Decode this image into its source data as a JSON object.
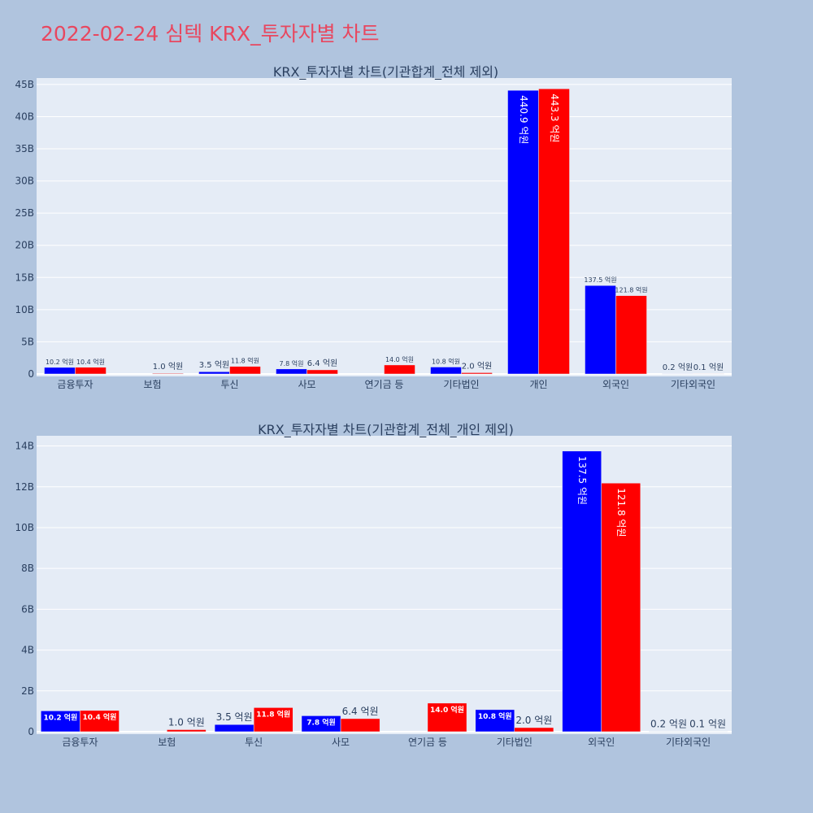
{
  "page": {
    "title": "2022-02-24 심텍 KRX_투자자별 차트"
  },
  "colors": {
    "buy": "#0000ff",
    "sell": "#ff0000",
    "plot_bg": "#e5ecf6",
    "page_bg": "#b0c4de",
    "title": "#e8475f",
    "text": "#2a3f5f"
  },
  "chart_data": [
    {
      "type": "bar",
      "title": "KRX_투자자별 차트(기관합계_전체 제외)",
      "categories": [
        "금융투자",
        "보험",
        "투신",
        "사모",
        "연기금 등",
        "기타법인",
        "개인",
        "외국인",
        "기타외국인"
      ],
      "series": [
        {
          "values": [
            1020000000,
            0,
            350000000,
            780000000,
            0,
            1080000000,
            44090000000,
            13750000000,
            20000000
          ],
          "labels": [
            "10.2 억원",
            "",
            "3.5 억원",
            "7.8 억원",
            "",
            "10.8 억원",
            "440.9 억원",
            "137.5 억원",
            "0.2 억원"
          ]
        },
        {
          "values": [
            1040000000,
            100000000,
            1180000000,
            640000000,
            1400000000,
            200000000,
            44330000000,
            12180000000,
            10000000
          ],
          "labels": [
            "10.4 억원",
            "1.0 억원",
            "11.8 억원",
            "6.4 억원",
            "14.0 억원",
            "2.0 억원",
            "443.3 억원",
            "121.8 억원",
            "0.1 억원"
          ]
        }
      ],
      "ylim": [
        0,
        46000000000
      ],
      "yticks": [
        0,
        5000000000,
        10000000000,
        15000000000,
        20000000000,
        25000000000,
        30000000000,
        35000000000,
        40000000000,
        45000000000
      ],
      "ytick_labels": [
        "0",
        "5B",
        "10B",
        "15B",
        "20B",
        "25B",
        "30B",
        "35B",
        "40B",
        "45B"
      ],
      "grid": true
    },
    {
      "type": "bar",
      "title": "KRX_투자자별 차트(기관합계_전체_개인 제외)",
      "categories": [
        "금융투자",
        "보험",
        "투신",
        "사모",
        "연기금 등",
        "기타법인",
        "외국인",
        "기타외국인"
      ],
      "series": [
        {
          "values": [
            1020000000,
            0,
            350000000,
            780000000,
            0,
            1080000000,
            13750000000,
            20000000
          ],
          "labels": [
            "10.2 억원",
            "",
            "3.5 억원",
            "7.8 억원",
            "",
            "10.8 억원",
            "137.5 억원",
            "0.2 억원"
          ]
        },
        {
          "values": [
            1040000000,
            100000000,
            1180000000,
            640000000,
            1400000000,
            200000000,
            12180000000,
            10000000
          ],
          "labels": [
            "10.4 억원",
            "1.0 억원",
            "11.8 억원",
            "6.4 억원",
            "14.0 억원",
            "2.0 억원",
            "121.8 억원",
            "0.1 억원"
          ]
        }
      ],
      "ylim": [
        0,
        14500000000
      ],
      "yticks": [
        0,
        2000000000,
        4000000000,
        6000000000,
        8000000000,
        10000000000,
        12000000000,
        14000000000
      ],
      "ytick_labels": [
        "0",
        "2B",
        "4B",
        "6B",
        "8B",
        "10B",
        "12B",
        "14B"
      ],
      "grid": true
    }
  ]
}
